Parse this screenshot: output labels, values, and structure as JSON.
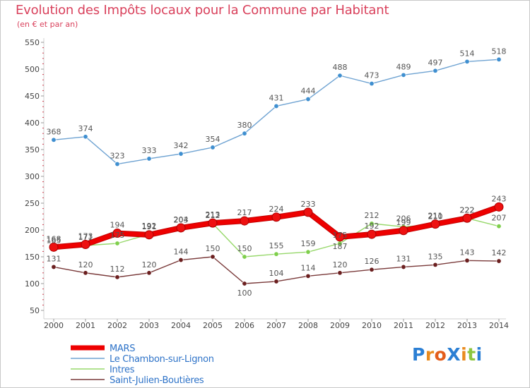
{
  "title": "Evolution des Impôts locaux pour la Commune par Habitant",
  "subtitle": "(en € et par an)",
  "logo": {
    "text": "ProXiti",
    "colors": [
      "#2b7fd4",
      "#e98b1e",
      "#e35d1b",
      "#2b7fd4",
      "#e98b1e",
      "#8cc63f",
      "#2b7fd4"
    ]
  },
  "chart_data": {
    "type": "line",
    "x": [
      "2000",
      "2001",
      "2002",
      "2003",
      "2004",
      "2005",
      "2006",
      "2007",
      "2008",
      "2009",
      "2010",
      "2011",
      "2012",
      "2013",
      "2014"
    ],
    "ylim": [
      50,
      550
    ],
    "yticks": [
      50,
      100,
      150,
      200,
      250,
      300,
      350,
      400,
      450,
      500,
      550
    ],
    "grid": false,
    "legend": "bottom-left",
    "series": [
      {
        "name": "Le Chambon-sur-Lignon",
        "color": "#6fa3d2",
        "marker": "#3f8fd0",
        "values": [
          368,
          374,
          323,
          333,
          342,
          354,
          380,
          431,
          444,
          488,
          473,
          489,
          497,
          514,
          518
        ]
      },
      {
        "name": "Intres",
        "color": "#97d86b",
        "marker": "#7fcf4c",
        "values": [
          165,
          171,
          175,
          192,
          203,
          212,
          150,
          155,
          159,
          175,
          212,
          206,
          210,
          222,
          207
        ]
      },
      {
        "name": "Saint-Julien-Boutières",
        "color": "#7a3a3a",
        "marker": "#6b1f1f",
        "values": [
          131,
          120,
          112,
          120,
          144,
          150,
          100,
          104,
          114,
          120,
          126,
          131,
          135,
          143,
          142
        ]
      },
      {
        "name": "MARS",
        "color": "#ee0000",
        "marker": "#ee1111",
        "values": [
          168,
          173,
          194,
          191,
          204,
          213,
          217,
          224,
          233,
          187,
          192,
          199,
          211,
          222,
          243
        ]
      }
    ]
  }
}
